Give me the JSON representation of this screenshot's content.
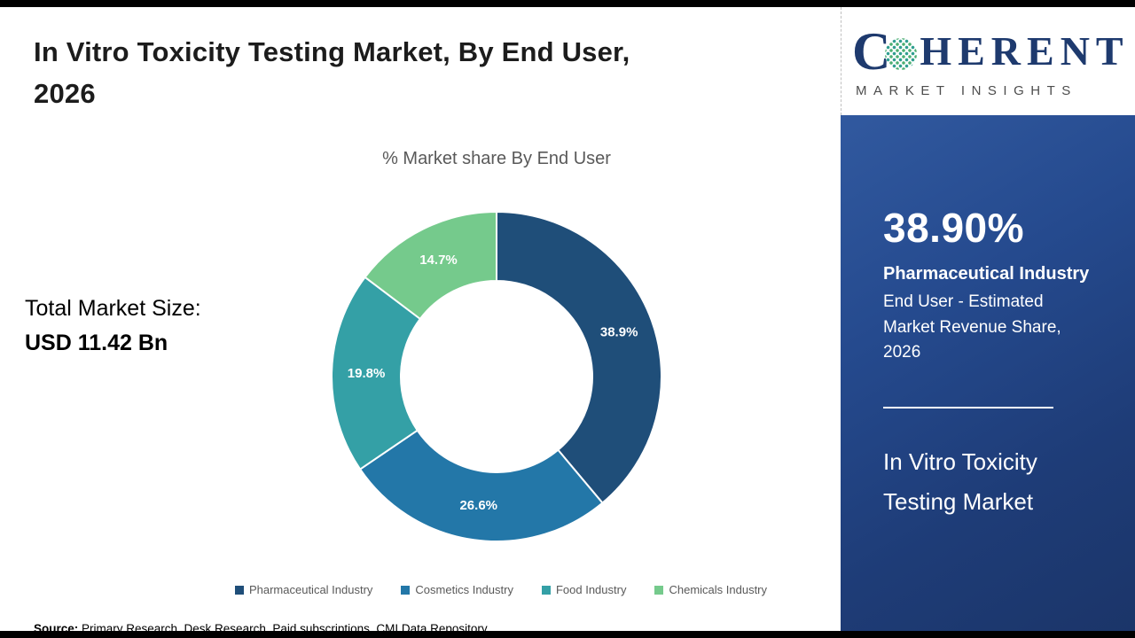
{
  "page": {
    "title_line1": "In Vitro Toxicity Testing Market, By End User,",
    "title_line2": "2026",
    "chart_subtitle": "% Market share By End User",
    "total_market_label": "Total Market Size:",
    "total_market_value": "USD 11.42 Bn",
    "source_label": "Source:",
    "source_text": " Primary Research, Desk Research, Paid subscriptions, CMI Data Repository"
  },
  "logo": {
    "brand_part1": "C",
    "brand_part2": "HERENT",
    "brand_subtitle": "MARKET INSIGHTS"
  },
  "sidebar": {
    "stat_value": "38.90%",
    "stat_highlight": "Pharmaceutical Industry",
    "stat_description": "End User - Estimated Market Revenue Share, 2026",
    "market_name": "In Vitro Toxicity Testing Market",
    "background_color": "#1f3d7a"
  },
  "chart_data": {
    "type": "pie",
    "subtype": "donut",
    "title": "% Market share By End User",
    "categories": [
      "Pharmaceutical Industry",
      "Cosmetics Industry",
      "Food Industry",
      "Chemicals Industry"
    ],
    "values": [
      38.9,
      26.6,
      19.8,
      14.7
    ],
    "labels": [
      "38.9%",
      "26.6%",
      "19.8%",
      "14.7%"
    ],
    "colors": [
      "#1f4e79",
      "#2377a8",
      "#34a0a6",
      "#75ca8c"
    ],
    "start_angle_deg": 0,
    "direction": "clockwise",
    "legend_position": "bottom"
  }
}
